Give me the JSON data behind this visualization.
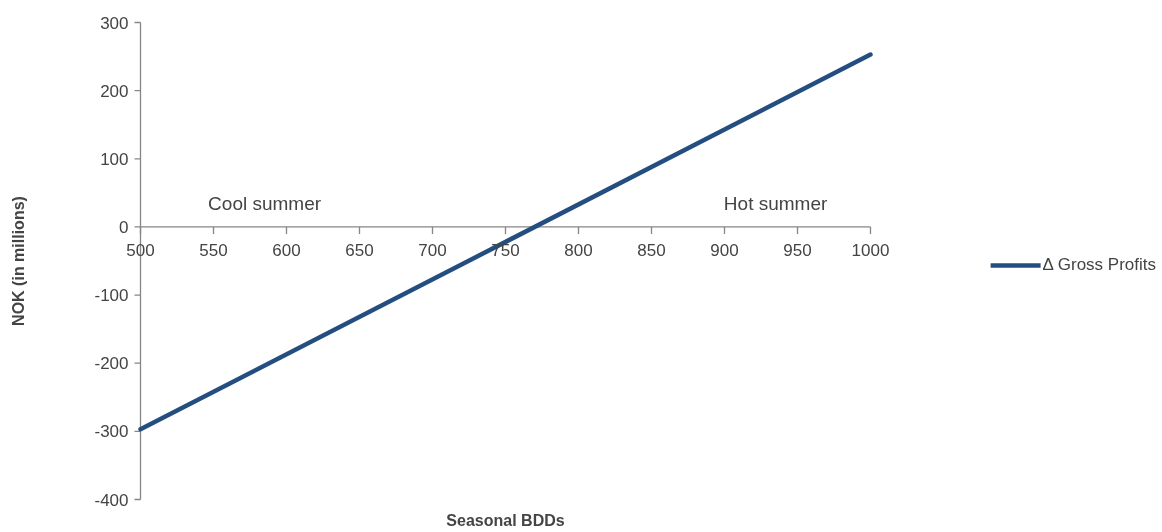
{
  "chart_data": {
    "type": "line",
    "xlabel": "Seasonal BDDs",
    "ylabel": "NOK (in millions)",
    "x": [
      500,
      1000
    ],
    "series": [
      {
        "name": "Δ Gross Profits",
        "color": "#254e80",
        "values": [
          -297,
          253
        ]
      }
    ],
    "xlim": [
      500,
      1000
    ],
    "xticks": [
      500,
      550,
      600,
      650,
      700,
      750,
      800,
      850,
      900,
      950,
      1000
    ],
    "ylim": [
      -400,
      300
    ],
    "yticks": [
      -400,
      -300,
      -200,
      -100,
      0,
      100,
      200,
      300
    ],
    "annotations": [
      "Cool summer",
      "Hot summer"
    ],
    "grid": false,
    "legend": "right",
    "marker": "none",
    "line_style": "solid"
  }
}
